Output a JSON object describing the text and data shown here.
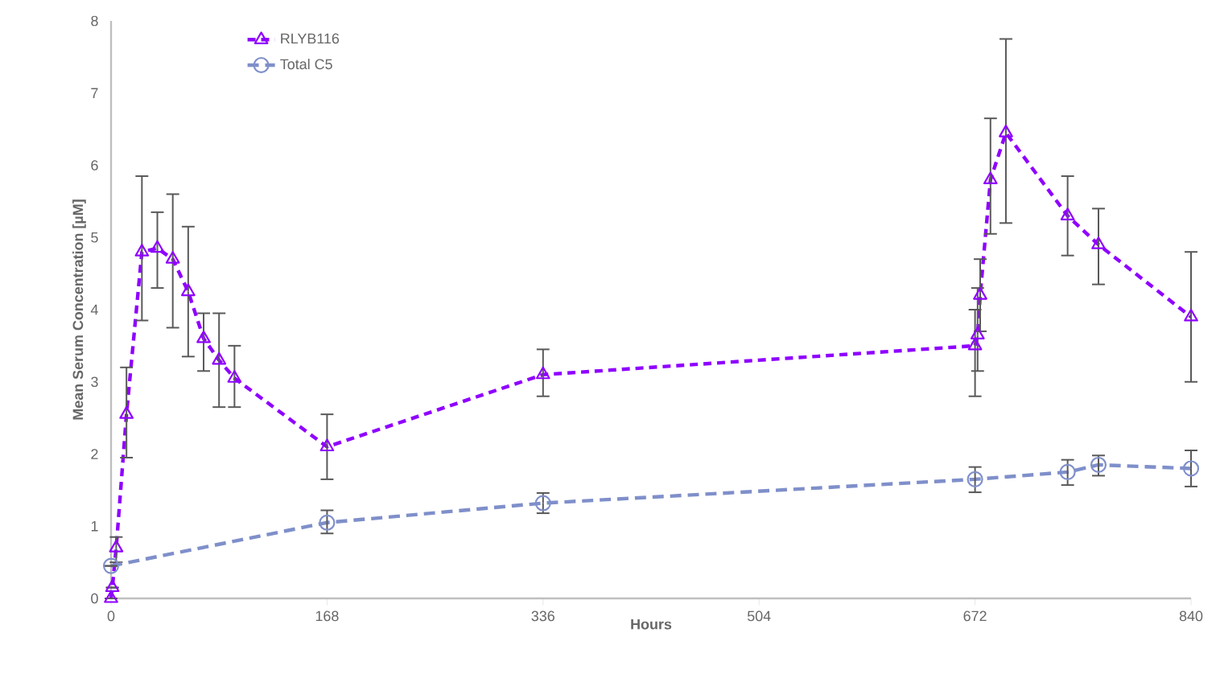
{
  "chart_data": {
    "type": "line",
    "xlabel": "Hours",
    "ylabel": "Mean Serum Concentration [µM]",
    "xlim": [
      0,
      840
    ],
    "xticks": [
      0,
      168,
      336,
      504,
      672,
      840
    ],
    "ylim": [
      0,
      8
    ],
    "yticks": [
      0,
      1,
      2,
      3,
      4,
      5,
      6,
      7,
      8
    ],
    "grid": false,
    "legend": "top left",
    "line_style": "dashed",
    "series": [
      {
        "name": "RLYB116",
        "color": "#8f00ff",
        "marker": "triangle",
        "x": [
          0,
          1,
          4,
          12,
          24,
          36,
          48,
          60,
          72,
          84,
          96,
          168,
          336,
          672,
          674,
          676,
          684,
          696,
          744,
          768,
          840
        ],
        "values": [
          0,
          0.15,
          0.7,
          2.55,
          4.8,
          4.85,
          4.7,
          4.25,
          3.6,
          3.3,
          3.05,
          2.1,
          3.1,
          3.5,
          3.65,
          4.2,
          5.8,
          6.45,
          5.3,
          4.9,
          3.9
        ],
        "errors": [
          null,
          null,
          [
            0.5,
            0.85
          ],
          [
            1.95,
            3.2
          ],
          [
            3.85,
            5.85
          ],
          [
            4.3,
            5.35
          ],
          [
            3.75,
            5.6
          ],
          [
            3.35,
            5.15
          ],
          [
            3.15,
            3.95
          ],
          [
            2.65,
            3.95
          ],
          [
            2.65,
            3.5
          ],
          [
            1.65,
            2.55
          ],
          [
            2.8,
            3.45
          ],
          [
            2.8,
            4.0
          ],
          [
            3.15,
            4.3
          ],
          [
            3.7,
            4.7
          ],
          [
            5.05,
            6.65
          ],
          [
            5.2,
            7.75
          ],
          [
            4.75,
            5.85
          ],
          [
            4.35,
            5.4
          ],
          [
            3.0,
            4.8
          ]
        ]
      },
      {
        "name": "Total C5",
        "color": "#7f8fca",
        "marker": "circle",
        "x": [
          0,
          168,
          336,
          672,
          744,
          768,
          840
        ],
        "values": [
          0.45,
          1.05,
          1.32,
          1.65,
          1.75,
          1.85,
          1.8
        ],
        "errors": [
          null,
          [
            0.9,
            1.22
          ],
          [
            1.18,
            1.46
          ],
          [
            1.47,
            1.82
          ],
          [
            1.57,
            1.92
          ],
          [
            1.7,
            1.98
          ],
          [
            1.55,
            2.05
          ]
        ]
      }
    ]
  }
}
